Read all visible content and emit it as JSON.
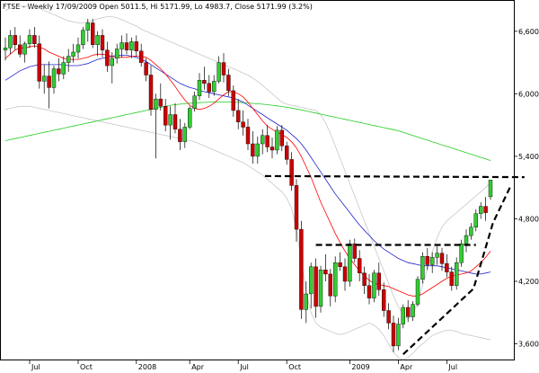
{
  "chart_data": {
    "type": "candlestick",
    "title": "FTSE - Weekly 17/09/2009 Open 5011.5, Hi 5171.99, Lo 4983.7, Close 5171.99 (3.2%)",
    "x_ticks": [
      "Jul",
      "Oct",
      "2008",
      "Apr",
      "Jul",
      "Oct",
      "2009",
      "Apr",
      "Jul"
    ],
    "y_ticks": [
      "6,600",
      "6,000",
      "5,400",
      "4,800",
      "4,200",
      "3,600"
    ],
    "ylim": [
      3450,
      6900
    ],
    "y_axis_side": "right",
    "grid": false,
    "colors": {
      "up": "#33cc33",
      "down": "#cc0000",
      "ma_short": "#ff0000",
      "ma_mid": "#2222cc",
      "ma_long": "#22cc22",
      "bands": "#c8c8c8",
      "trendline": "#000000"
    },
    "series": {
      "candles_ohlc": [
        [
          6420,
          6540,
          6320,
          6440
        ],
        [
          6440,
          6610,
          6380,
          6560
        ],
        [
          6560,
          6640,
          6420,
          6470
        ],
        [
          6470,
          6560,
          6350,
          6380
        ],
        [
          6380,
          6500,
          6300,
          6480
        ],
        [
          6480,
          6620,
          6440,
          6560
        ],
        [
          6560,
          6640,
          6440,
          6480
        ],
        [
          6480,
          6560,
          6050,
          6120
        ],
        [
          6120,
          6280,
          6000,
          6170
        ],
        [
          6170,
          6310,
          5860,
          6060
        ],
        [
          6060,
          6270,
          6000,
          6240
        ],
        [
          6240,
          6340,
          6120,
          6190
        ],
        [
          6190,
          6360,
          6140,
          6300
        ],
        [
          6300,
          6430,
          6210,
          6360
        ],
        [
          6360,
          6480,
          6300,
          6400
        ],
        [
          6400,
          6540,
          6340,
          6470
        ],
        [
          6470,
          6640,
          6430,
          6610
        ],
        [
          6610,
          6720,
          6500,
          6680
        ],
        [
          6680,
          6720,
          6440,
          6470
        ],
        [
          6470,
          6600,
          6360,
          6560
        ],
        [
          6560,
          6620,
          6350,
          6420
        ],
        [
          6420,
          6500,
          6210,
          6270
        ],
        [
          6270,
          6400,
          6100,
          6340
        ],
        [
          6340,
          6480,
          6290,
          6430
        ],
        [
          6430,
          6560,
          6350,
          6490
        ],
        [
          6490,
          6580,
          6380,
          6420
        ],
        [
          6420,
          6540,
          6340,
          6500
        ],
        [
          6500,
          6560,
          6360,
          6410
        ],
        [
          6410,
          6480,
          6260,
          6300
        ],
        [
          6300,
          6340,
          6120,
          6180
        ],
        [
          6180,
          6270,
          5790,
          5850
        ],
        [
          5850,
          6000,
          5380,
          5950
        ],
        [
          5950,
          6100,
          5840,
          5880
        ],
        [
          5880,
          5950,
          5640,
          5700
        ],
        [
          5700,
          5880,
          5560,
          5800
        ],
        [
          5800,
          5910,
          5620,
          5660
        ],
        [
          5660,
          5760,
          5460,
          5540
        ],
        [
          5540,
          5720,
          5480,
          5680
        ],
        [
          5680,
          5880,
          5660,
          5860
        ],
        [
          5860,
          6020,
          5830,
          5980
        ],
        [
          5980,
          6200,
          5940,
          6130
        ],
        [
          6130,
          6260,
          6040,
          6100
        ],
        [
          6100,
          6180,
          5960,
          6020
        ],
        [
          6020,
          6180,
          5980,
          6120
        ],
        [
          6120,
          6360,
          6100,
          6300
        ],
        [
          6300,
          6390,
          6110,
          6180
        ],
        [
          6180,
          6240,
          5980,
          6030
        ],
        [
          6030,
          6080,
          5780,
          5840
        ],
        [
          5840,
          5950,
          5660,
          5730
        ],
        [
          5730,
          5840,
          5600,
          5680
        ],
        [
          5680,
          5760,
          5460,
          5520
        ],
        [
          5520,
          5640,
          5330,
          5400
        ],
        [
          5400,
          5590,
          5330,
          5520
        ],
        [
          5520,
          5660,
          5420,
          5600
        ],
        [
          5600,
          5700,
          5440,
          5490
        ],
        [
          5490,
          5580,
          5380,
          5460
        ],
        [
          5460,
          5690,
          5420,
          5650
        ],
        [
          5650,
          5700,
          5450,
          5500
        ],
        [
          5500,
          5540,
          5320,
          5370
        ],
        [
          5370,
          5440,
          5070,
          5120
        ],
        [
          5120,
          5180,
          4580,
          4700
        ],
        [
          4700,
          4780,
          3840,
          3930
        ],
        [
          3930,
          4200,
          3800,
          4080
        ],
        [
          4080,
          4380,
          3940,
          4340
        ],
        [
          4340,
          4420,
          3850,
          3960
        ],
        [
          3960,
          4350,
          3900,
          4310
        ],
        [
          4310,
          4460,
          4200,
          4270
        ],
        [
          4270,
          4320,
          3960,
          4060
        ],
        [
          4060,
          4440,
          4000,
          4380
        ],
        [
          4380,
          4480,
          4300,
          4340
        ],
        [
          4340,
          4420,
          4110,
          4200
        ],
        [
          4200,
          4600,
          4150,
          4560
        ],
        [
          4560,
          4610,
          4380,
          4420
        ],
        [
          4420,
          4500,
          4200,
          4280
        ],
        [
          4280,
          4340,
          4080,
          4160
        ],
        [
          4160,
          4270,
          3980,
          4040
        ],
        [
          4040,
          4310,
          4000,
          4280
        ],
        [
          4280,
          4380,
          4060,
          4120
        ],
        [
          4120,
          4190,
          3860,
          3920
        ],
        [
          3920,
          3990,
          3740,
          3800
        ],
        [
          3800,
          3870,
          3520,
          3580
        ],
        [
          3580,
          3850,
          3540,
          3790
        ],
        [
          3790,
          3980,
          3750,
          3950
        ],
        [
          3950,
          4020,
          3810,
          3860
        ],
        [
          3860,
          4010,
          3820,
          3980
        ],
        [
          3980,
          4250,
          3960,
          4220
        ],
        [
          4220,
          4480,
          4180,
          4440
        ],
        [
          4440,
          4520,
          4310,
          4360
        ],
        [
          4360,
          4480,
          4280,
          4430
        ],
        [
          4430,
          4540,
          4360,
          4470
        ],
        [
          4470,
          4520,
          4300,
          4370
        ],
        [
          4370,
          4460,
          4240,
          4290
        ],
        [
          4290,
          4340,
          4110,
          4160
        ],
        [
          4160,
          4430,
          4120,
          4380
        ],
        [
          4380,
          4600,
          4340,
          4560
        ],
        [
          4560,
          4700,
          4480,
          4640
        ],
        [
          4640,
          4760,
          4600,
          4720
        ],
        [
          4720,
          4890,
          4680,
          4850
        ],
        [
          4850,
          4960,
          4800,
          4920
        ],
        [
          4920,
          5010,
          4780,
          4860
        ],
        [
          5011.5,
          5171.99,
          4983.7,
          5171.99
        ]
      ],
      "moving_average_short": [
        6340,
        6380,
        6420,
        6440,
        6440,
        6450,
        6460,
        6450,
        6430,
        6400,
        6380,
        6360,
        6340,
        6330,
        6330,
        6330,
        6340,
        6350,
        6370,
        6380,
        6380,
        6370,
        6360,
        6350,
        6350,
        6350,
        6360,
        6360,
        6360,
        6350,
        6320,
        6280,
        6240,
        6190,
        6130,
        6070,
        6000,
        5940,
        5890,
        5860,
        5850,
        5860,
        5880,
        5910,
        5950,
        5990,
        6020,
        6020,
        6000,
        5970,
        5920,
        5860,
        5800,
        5740,
        5690,
        5660,
        5630,
        5610,
        5580,
        5540,
        5480,
        5400,
        5300,
        5200,
        5080,
        4960,
        4860,
        4760,
        4660,
        4570,
        4490,
        4420,
        4360,
        4300,
        4250,
        4210,
        4180,
        4170,
        4160,
        4150,
        4130,
        4110,
        4090,
        4070,
        4060,
        4060,
        4080,
        4110,
        4140,
        4170,
        4200,
        4230,
        4250,
        4260,
        4270,
        4280,
        4300,
        4340,
        4380,
        4430,
        4490
      ],
      "moving_average_mid": [
        6130,
        6160,
        6190,
        6220,
        6240,
        6260,
        6270,
        6280,
        6280,
        6280,
        6280,
        6280,
        6280,
        6270,
        6270,
        6270,
        6280,
        6290,
        6310,
        6330,
        6340,
        6350,
        6360,
        6370,
        6370,
        6370,
        6360,
        6350,
        6330,
        6310,
        6280,
        6250,
        6220,
        6190,
        6160,
        6130,
        6100,
        6080,
        6060,
        6050,
        6030,
        6020,
        6010,
        6000,
        5990,
        5980,
        5970,
        5960,
        5940,
        5920,
        5890,
        5860,
        5830,
        5800,
        5770,
        5740,
        5710,
        5680,
        5650,
        5610,
        5570,
        5520,
        5460,
        5390,
        5320,
        5250,
        5180,
        5110,
        5040,
        4980,
        4920,
        4860,
        4800,
        4740,
        4690,
        4640,
        4590,
        4550,
        4510,
        4480,
        4450,
        4420,
        4400,
        4380,
        4370,
        4360,
        4350,
        4350,
        4350,
        4350,
        4340,
        4330,
        4320,
        4310,
        4300,
        4290,
        4280,
        4270,
        4270,
        4280,
        4290
      ],
      "moving_average_long": [
        5550,
        5560,
        5570,
        5580,
        5590,
        5600,
        5610,
        5620,
        5630,
        5640,
        5650,
        5660,
        5670,
        5680,
        5690,
        5700,
        5710,
        5720,
        5730,
        5740,
        5750,
        5760,
        5770,
        5780,
        5790,
        5800,
        5810,
        5820,
        5830,
        5840,
        5850,
        5860,
        5870,
        5880,
        5890,
        5895,
        5900,
        5905,
        5910,
        5912,
        5915,
        5918,
        5920,
        5921,
        5922,
        5922,
        5921,
        5920,
        5918,
        5915,
        5912,
        5908,
        5904,
        5900,
        5895,
        5890,
        5884,
        5878,
        5870,
        5862,
        5854,
        5845,
        5835,
        5825,
        5815,
        5805,
        5795,
        5785,
        5775,
        5765,
        5755,
        5745,
        5735,
        5725,
        5715,
        5705,
        5695,
        5685,
        5675,
        5665,
        5655,
        5645,
        5630,
        5615,
        5600,
        5585,
        5570,
        5555,
        5540,
        5525,
        5510,
        5495,
        5480,
        5465,
        5450,
        5435,
        5420,
        5405,
        5390,
        5375,
        5360
      ],
      "bollinger_upper": [
        6800,
        6820,
        6830,
        6840,
        6840,
        6840,
        6830,
        6820,
        6800,
        6780,
        6760,
        6740,
        6720,
        6700,
        6690,
        6680,
        6680,
        6690,
        6700,
        6720,
        6730,
        6740,
        6740,
        6730,
        6710,
        6690,
        6670,
        6650,
        6620,
        6600,
        6580,
        6560,
        6540,
        6520,
        6500,
        6480,
        6460,
        6440,
        6420,
        6400,
        6380,
        6360,
        6340,
        6320,
        6300,
        6280,
        6260,
        6240,
        6220,
        6200,
        6180,
        6150,
        6120,
        6080,
        6040,
        6000,
        5960,
        5920,
        5900,
        5890,
        5880,
        5870,
        5860,
        5850,
        5840,
        5800,
        5720,
        5620,
        5500,
        5380,
        5260,
        5140,
        5020,
        4900,
        4780,
        4660,
        4540,
        4420,
        4300,
        4180,
        4060,
        3960,
        3880,
        3840,
        3880,
        4000,
        4160,
        4320,
        4480,
        4620,
        4720,
        4780,
        4820,
        4860,
        4900,
        4940,
        4980,
        5020,
        5060,
        5100,
        5150
      ],
      "bollinger_lower": [
        5850,
        5860,
        5870,
        5880,
        5880,
        5880,
        5870,
        5860,
        5850,
        5840,
        5830,
        5820,
        5810,
        5800,
        5790,
        5780,
        5770,
        5760,
        5750,
        5740,
        5730,
        5720,
        5710,
        5700,
        5690,
        5680,
        5670,
        5660,
        5650,
        5640,
        5630,
        5620,
        5610,
        5600,
        5590,
        5580,
        5570,
        5560,
        5550,
        5540,
        5520,
        5500,
        5480,
        5460,
        5440,
        5420,
        5400,
        5380,
        5360,
        5340,
        5310,
        5280,
        5250,
        5220,
        5180,
        5140,
        5100,
        5060,
        5000,
        4900,
        4700,
        4400,
        4100,
        3900,
        3800,
        3760,
        3740,
        3720,
        3700,
        3690,
        3700,
        3720,
        3740,
        3760,
        3780,
        3800,
        3780,
        3740,
        3680,
        3600,
        3520,
        3470,
        3450,
        3470,
        3510,
        3560,
        3600,
        3640,
        3680,
        3700,
        3720,
        3730,
        3730,
        3720,
        3700,
        3690,
        3680,
        3670,
        3660,
        3650,
        3640
      ]
    },
    "trendlines": [
      {
        "style": "dashed",
        "points": [
          [
            53.5,
            5210
          ],
          [
            107,
            5200
          ]
        ]
      },
      {
        "style": "dashed",
        "points": [
          [
            64,
            4550
          ],
          [
            97,
            4550
          ]
        ]
      },
      {
        "style": "dashed",
        "points": [
          [
            82,
            3500
          ],
          [
            96.5,
            4130
          ],
          [
            100.5,
            4760
          ],
          [
            104,
            5100
          ]
        ]
      }
    ]
  }
}
